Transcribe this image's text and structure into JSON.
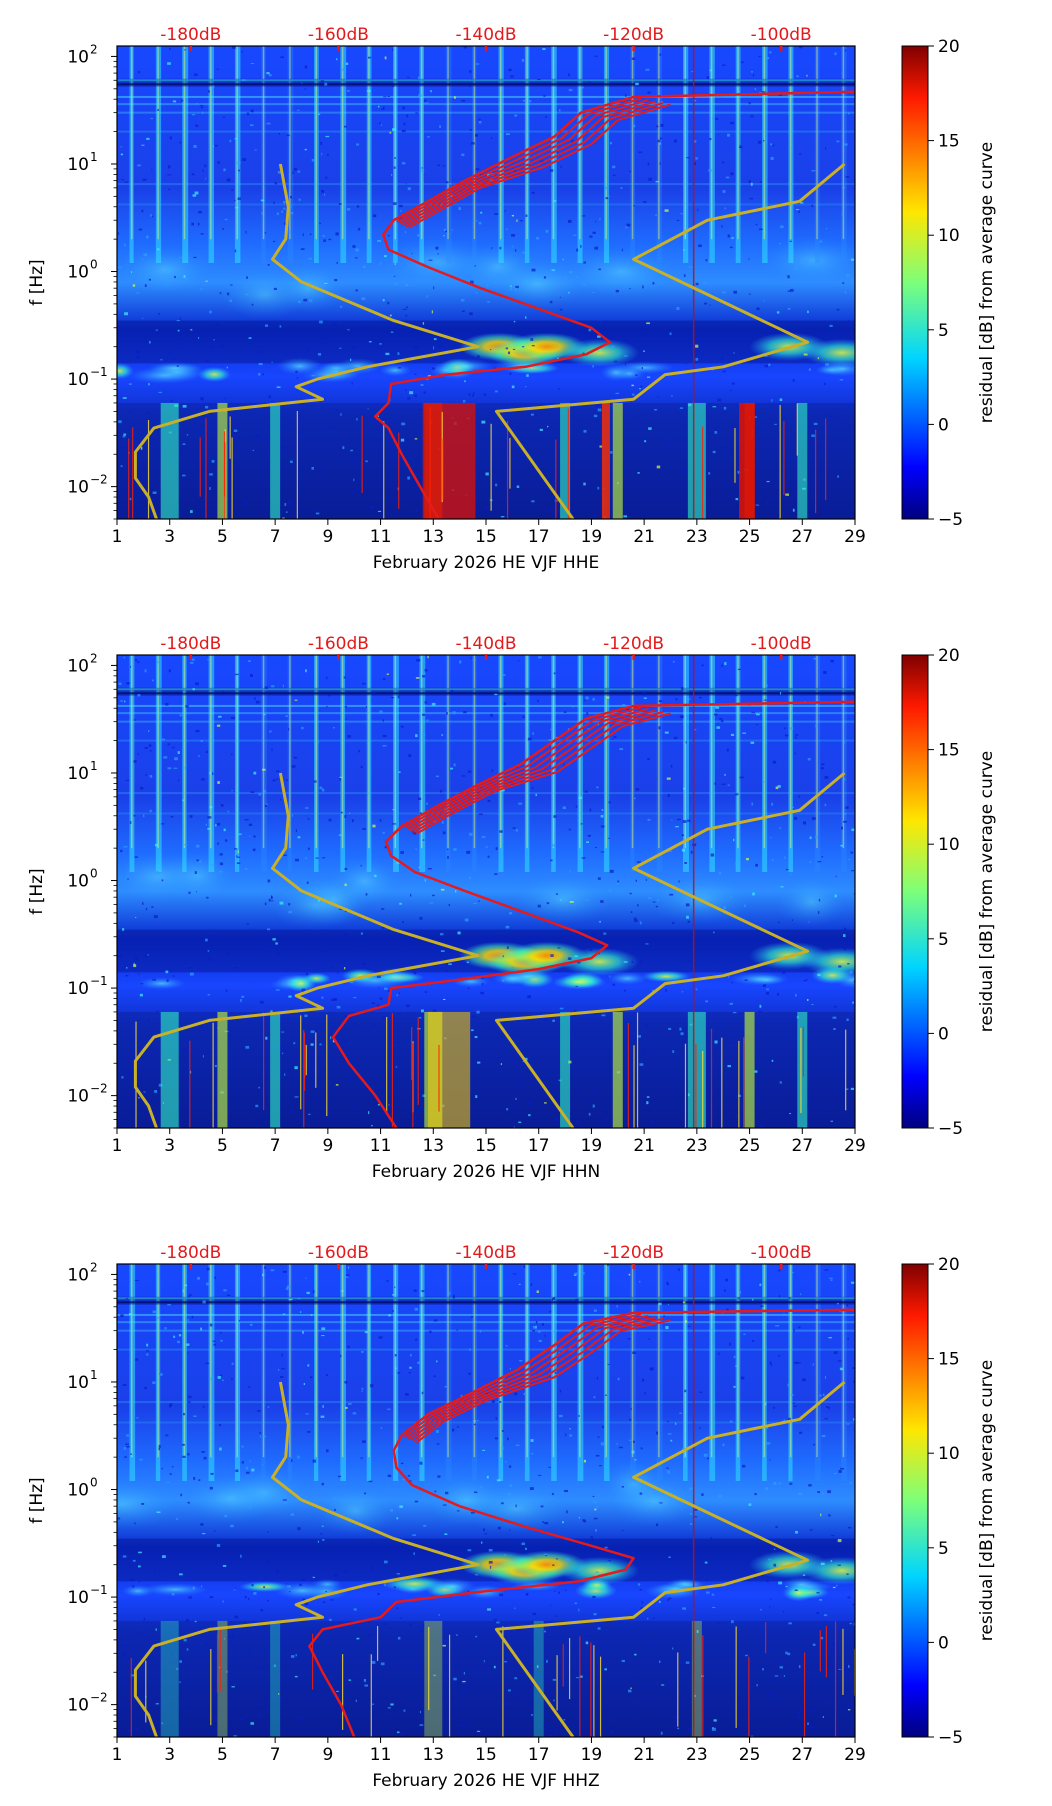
{
  "colors": {
    "psd_curve": "#e41a1c",
    "noise_model": "#c8b028",
    "top_axis_text": "#e31a1c",
    "axis": "#000000"
  },
  "chart_data": [
    {
      "type": "heatmap",
      "component": "HHE",
      "xlabel": "February 2026 HE VJF  HHE",
      "ylabel": "f [Hz]",
      "x_range": [
        1,
        29
      ],
      "x_ticks": [
        1,
        3,
        5,
        7,
        9,
        11,
        13,
        15,
        17,
        19,
        21,
        23,
        25,
        27,
        29
      ],
      "y_range": [
        0.005,
        125
      ],
      "y_scale": "log",
      "y_ticks": [
        {
          "value": 0.01,
          "label": "10",
          "exp": "−2"
        },
        {
          "value": 0.1,
          "label": "10",
          "exp": "−1"
        },
        {
          "value": 1,
          "label": "10",
          "exp": "0"
        },
        {
          "value": 10,
          "label": "10",
          "exp": "1"
        },
        {
          "value": 100,
          "label": "10",
          "exp": "2"
        }
      ],
      "top_axis": {
        "ticks": [
          {
            "x": 3.8,
            "label": "-180dB"
          },
          {
            "x": 9.4,
            "label": "-160dB"
          },
          {
            "x": 15,
            "label": "-140dB"
          },
          {
            "x": 20.6,
            "label": "-120dB"
          },
          {
            "x": 26.2,
            "label": "-100dB"
          }
        ]
      },
      "colorbar": {
        "label": "residual [dB] from average curve",
        "min": -5,
        "max": 20,
        "ticks": [
          -5,
          0,
          5,
          10,
          15,
          20
        ]
      },
      "events": [
        3,
        5,
        7,
        13,
        18,
        20,
        23,
        25,
        27
      ],
      "red_curve_fhigh_offset": 0,
      "red_curve": [
        {
          "x": 13.2,
          "f": 0.005
        },
        {
          "x": 12.5,
          "f": 0.01
        },
        {
          "x": 11.8,
          "f": 0.02
        },
        {
          "x": 11.3,
          "f": 0.035
        },
        {
          "x": 10.8,
          "f": 0.045
        },
        {
          "x": 11.3,
          "f": 0.06
        },
        {
          "x": 11.4,
          "f": 0.09
        },
        {
          "x": 13.5,
          "f": 0.11
        },
        {
          "x": 16.5,
          "f": 0.13
        },
        {
          "x": 18.8,
          "f": 0.17
        },
        {
          "x": 19.7,
          "f": 0.22
        },
        {
          "x": 19.0,
          "f": 0.3
        },
        {
          "x": 17.0,
          "f": 0.45
        },
        {
          "x": 14.8,
          "f": 0.7
        },
        {
          "x": 12.8,
          "f": 1.1
        },
        {
          "x": 11.3,
          "f": 1.6
        },
        {
          "x": 11.1,
          "f": 2.2
        },
        {
          "x": 11.5,
          "f": 3
        },
        {
          "x": 12.8,
          "f": 4.5
        },
        {
          "x": 14.2,
          "f": 7
        },
        {
          "x": 15.8,
          "f": 11
        },
        {
          "x": 17.6,
          "f": 18
        },
        {
          "x": 18.6,
          "f": 30
        },
        {
          "x": 20.6,
          "f": 42
        },
        {
          "x": 29,
          "f": 47
        }
      ],
      "noise_low_model": [
        {
          "x": 2.5,
          "f": 0.005
        },
        {
          "x": 2.2,
          "f": 0.008
        },
        {
          "x": 1.7,
          "f": 0.012
        },
        {
          "x": 1.7,
          "f": 0.021
        },
        {
          "x": 2.4,
          "f": 0.035
        },
        {
          "x": 4.5,
          "f": 0.05
        },
        {
          "x": 8.8,
          "f": 0.065
        },
        {
          "x": 7.8,
          "f": 0.085
        },
        {
          "x": 8.6,
          "f": 0.1
        },
        {
          "x": 10.5,
          "f": 0.13
        },
        {
          "x": 14.7,
          "f": 0.2
        },
        {
          "x": 11.5,
          "f": 0.35
        },
        {
          "x": 8.0,
          "f": 0.8
        },
        {
          "x": 6.9,
          "f": 1.3
        },
        {
          "x": 7.4,
          "f": 2
        },
        {
          "x": 7.5,
          "f": 4
        },
        {
          "x": 7.2,
          "f": 10
        }
      ],
      "noise_high_model": [
        {
          "x": 18.3,
          "f": 0.005
        },
        {
          "x": 15.4,
          "f": 0.05
        },
        {
          "x": 20.6,
          "f": 0.065
        },
        {
          "x": 21.8,
          "f": 0.11
        },
        {
          "x": 24,
          "f": 0.13
        },
        {
          "x": 27.2,
          "f": 0.22
        },
        {
          "x": 20.6,
          "f": 1.3
        },
        {
          "x": 23.4,
          "f": 3
        },
        {
          "x": 26.9,
          "f": 4.5
        },
        {
          "x": 28.6,
          "f": 10
        }
      ]
    },
    {
      "type": "heatmap",
      "component": "HHN",
      "xlabel": "February 2026 HE VJF  HHN",
      "ylabel": "f [Hz]",
      "x_range": [
        1,
        29
      ],
      "x_ticks": [
        1,
        3,
        5,
        7,
        9,
        11,
        13,
        15,
        17,
        19,
        21,
        23,
        25,
        27,
        29
      ],
      "y_range": [
        0.005,
        125
      ],
      "y_scale": "log",
      "y_ticks": [
        {
          "value": 0.01,
          "label": "10",
          "exp": "−2"
        },
        {
          "value": 0.1,
          "label": "10",
          "exp": "−1"
        },
        {
          "value": 1,
          "label": "10",
          "exp": "0"
        },
        {
          "value": 10,
          "label": "10",
          "exp": "1"
        },
        {
          "value": 100,
          "label": "10",
          "exp": "2"
        }
      ],
      "top_axis": {
        "ticks": [
          {
            "x": 3.8,
            "label": "-180dB"
          },
          {
            "x": 9.4,
            "label": "-160dB"
          },
          {
            "x": 15,
            "label": "-140dB"
          },
          {
            "x": 20.6,
            "label": "-120dB"
          },
          {
            "x": 26.2,
            "label": "-100dB"
          }
        ]
      },
      "colorbar": {
        "label": "residual [dB] from average curve",
        "min": -5,
        "max": 20,
        "ticks": [
          -5,
          0,
          5,
          10,
          15,
          20
        ]
      },
      "events": [
        3,
        5,
        7,
        13,
        18,
        20,
        23,
        25,
        27
      ],
      "red_curve": [
        {
          "x": 11.6,
          "f": 0.005
        },
        {
          "x": 10.8,
          "f": 0.01
        },
        {
          "x": 9.8,
          "f": 0.02
        },
        {
          "x": 9.2,
          "f": 0.035
        },
        {
          "x": 9.8,
          "f": 0.055
        },
        {
          "x": 11.3,
          "f": 0.07
        },
        {
          "x": 11.4,
          "f": 0.1
        },
        {
          "x": 14.0,
          "f": 0.12
        },
        {
          "x": 17.0,
          "f": 0.15
        },
        {
          "x": 19.0,
          "f": 0.19
        },
        {
          "x": 19.6,
          "f": 0.25
        },
        {
          "x": 18.5,
          "f": 0.33
        },
        {
          "x": 16.5,
          "f": 0.5
        },
        {
          "x": 14.2,
          "f": 0.8
        },
        {
          "x": 12.3,
          "f": 1.2
        },
        {
          "x": 11.4,
          "f": 1.7
        },
        {
          "x": 11.2,
          "f": 2.3
        },
        {
          "x": 11.8,
          "f": 3.2
        },
        {
          "x": 13.2,
          "f": 5
        },
        {
          "x": 14.8,
          "f": 8
        },
        {
          "x": 16.3,
          "f": 12
        },
        {
          "x": 17.6,
          "f": 20
        },
        {
          "x": 18.8,
          "f": 32
        },
        {
          "x": 20.6,
          "f": 42
        },
        {
          "x": 29,
          "f": 46
        }
      ],
      "noise_low_model": [
        {
          "x": 2.5,
          "f": 0.005
        },
        {
          "x": 2.2,
          "f": 0.008
        },
        {
          "x": 1.7,
          "f": 0.012
        },
        {
          "x": 1.7,
          "f": 0.021
        },
        {
          "x": 2.4,
          "f": 0.035
        },
        {
          "x": 4.5,
          "f": 0.05
        },
        {
          "x": 8.8,
          "f": 0.065
        },
        {
          "x": 7.8,
          "f": 0.085
        },
        {
          "x": 8.6,
          "f": 0.1
        },
        {
          "x": 10.5,
          "f": 0.13
        },
        {
          "x": 14.7,
          "f": 0.2
        },
        {
          "x": 11.5,
          "f": 0.35
        },
        {
          "x": 8.0,
          "f": 0.8
        },
        {
          "x": 6.9,
          "f": 1.3
        },
        {
          "x": 7.4,
          "f": 2
        },
        {
          "x": 7.5,
          "f": 4
        },
        {
          "x": 7.2,
          "f": 10
        }
      ],
      "noise_high_model": [
        {
          "x": 18.3,
          "f": 0.005
        },
        {
          "x": 15.4,
          "f": 0.05
        },
        {
          "x": 20.6,
          "f": 0.065
        },
        {
          "x": 21.8,
          "f": 0.11
        },
        {
          "x": 24,
          "f": 0.13
        },
        {
          "x": 27.2,
          "f": 0.22
        },
        {
          "x": 20.6,
          "f": 1.3
        },
        {
          "x": 23.4,
          "f": 3
        },
        {
          "x": 26.9,
          "f": 4.5
        },
        {
          "x": 28.6,
          "f": 10
        }
      ]
    },
    {
      "type": "heatmap",
      "component": "HHZ",
      "xlabel": "February 2026 HE VJF  HHZ",
      "ylabel": "f [Hz]",
      "x_range": [
        1,
        29
      ],
      "x_ticks": [
        1,
        3,
        5,
        7,
        9,
        11,
        13,
        15,
        17,
        19,
        21,
        23,
        25,
        27,
        29
      ],
      "y_range": [
        0.005,
        125
      ],
      "y_scale": "log",
      "y_ticks": [
        {
          "value": 0.01,
          "label": "10",
          "exp": "−2"
        },
        {
          "value": 0.1,
          "label": "10",
          "exp": "−1"
        },
        {
          "value": 1,
          "label": "10",
          "exp": "0"
        },
        {
          "value": 10,
          "label": "10",
          "exp": "1"
        },
        {
          "value": 100,
          "label": "10",
          "exp": "2"
        }
      ],
      "top_axis": {
        "ticks": [
          {
            "x": 3.8,
            "label": "-180dB"
          },
          {
            "x": 9.4,
            "label": "-160dB"
          },
          {
            "x": 15,
            "label": "-140dB"
          },
          {
            "x": 20.6,
            "label": "-120dB"
          },
          {
            "x": 26.2,
            "label": "-100dB"
          }
        ]
      },
      "colorbar": {
        "label": "residual [dB] from average curve",
        "min": -5,
        "max": 20,
        "ticks": [
          -5,
          0,
          5,
          10,
          15,
          20
        ]
      },
      "events": [
        3,
        5,
        7,
        13,
        17,
        23
      ],
      "red_curve": [
        {
          "x": 10.0,
          "f": 0.005
        },
        {
          "x": 9.5,
          "f": 0.01
        },
        {
          "x": 8.8,
          "f": 0.02
        },
        {
          "x": 8.3,
          "f": 0.035
        },
        {
          "x": 8.8,
          "f": 0.05
        },
        {
          "x": 11.0,
          "f": 0.065
        },
        {
          "x": 11.6,
          "f": 0.09
        },
        {
          "x": 14.5,
          "f": 0.11
        },
        {
          "x": 18.5,
          "f": 0.14
        },
        {
          "x": 20.3,
          "f": 0.18
        },
        {
          "x": 20.6,
          "f": 0.23
        },
        {
          "x": 19.0,
          "f": 0.3
        },
        {
          "x": 16.5,
          "f": 0.45
        },
        {
          "x": 14.0,
          "f": 0.7
        },
        {
          "x": 12.2,
          "f": 1.1
        },
        {
          "x": 11.6,
          "f": 1.6
        },
        {
          "x": 11.5,
          "f": 2.3
        },
        {
          "x": 11.8,
          "f": 3.2
        },
        {
          "x": 12.8,
          "f": 5
        },
        {
          "x": 14.5,
          "f": 8
        },
        {
          "x": 16.2,
          "f": 13
        },
        {
          "x": 17.6,
          "f": 22
        },
        {
          "x": 18.7,
          "f": 35
        },
        {
          "x": 20.6,
          "f": 44
        },
        {
          "x": 29,
          "f": 47
        }
      ],
      "noise_low_model": [
        {
          "x": 2.5,
          "f": 0.005
        },
        {
          "x": 2.2,
          "f": 0.008
        },
        {
          "x": 1.7,
          "f": 0.012
        },
        {
          "x": 1.7,
          "f": 0.021
        },
        {
          "x": 2.4,
          "f": 0.035
        },
        {
          "x": 4.5,
          "f": 0.05
        },
        {
          "x": 8.8,
          "f": 0.065
        },
        {
          "x": 7.8,
          "f": 0.085
        },
        {
          "x": 8.6,
          "f": 0.1
        },
        {
          "x": 10.5,
          "f": 0.13
        },
        {
          "x": 14.7,
          "f": 0.2
        },
        {
          "x": 11.5,
          "f": 0.35
        },
        {
          "x": 8.0,
          "f": 0.8
        },
        {
          "x": 6.9,
          "f": 1.3
        },
        {
          "x": 7.4,
          "f": 2
        },
        {
          "x": 7.5,
          "f": 4
        },
        {
          "x": 7.2,
          "f": 10
        }
      ],
      "noise_high_model": [
        {
          "x": 18.3,
          "f": 0.005
        },
        {
          "x": 15.4,
          "f": 0.05
        },
        {
          "x": 20.6,
          "f": 0.065
        },
        {
          "x": 21.8,
          "f": 0.11
        },
        {
          "x": 24,
          "f": 0.13
        },
        {
          "x": 27.2,
          "f": 0.22
        },
        {
          "x": 20.6,
          "f": 1.3
        },
        {
          "x": 23.4,
          "f": 3
        },
        {
          "x": 26.9,
          "f": 4.5
        },
        {
          "x": 28.6,
          "f": 10
        }
      ]
    }
  ]
}
